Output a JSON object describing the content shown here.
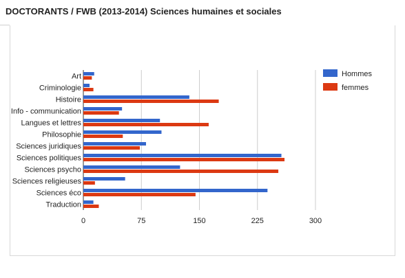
{
  "page": {
    "title": "DOCTORANTS / FWB (2013-2014) Sciences humaines et sociales"
  },
  "colors": {
    "hommes": "#3366cc",
    "femmes": "#dc3912",
    "grid": "#cccccc",
    "axis": "#333333"
  },
  "chart_data": {
    "type": "bar",
    "orientation": "horizontal",
    "title": "DOCTORANTS / FWB (2013-2014) Sciences humaines et sociales",
    "categories": [
      "Art",
      "Criminologie",
      "Histoire",
      "Info - communication",
      "Langues et lettres",
      "Philosophie",
      "Sciences juridiques",
      "Sciences politiques",
      "Sciences psycho",
      "Sciences religieuses",
      "Sciences éco",
      "Traduction"
    ],
    "series": [
      {
        "name": "Hommes",
        "values": [
          14,
          8,
          137,
          50,
          99,
          101,
          81,
          256,
          125,
          54,
          238,
          13
        ]
      },
      {
        "name": "femmes",
        "values": [
          11,
          13,
          175,
          46,
          162,
          51,
          73,
          260,
          252,
          15,
          145,
          20
        ]
      }
    ],
    "xticks": [
      "0",
      "75",
      "150",
      "225",
      "300"
    ],
    "xlim": [
      0,
      300
    ],
    "grid": true,
    "legend_position": "top-right"
  }
}
